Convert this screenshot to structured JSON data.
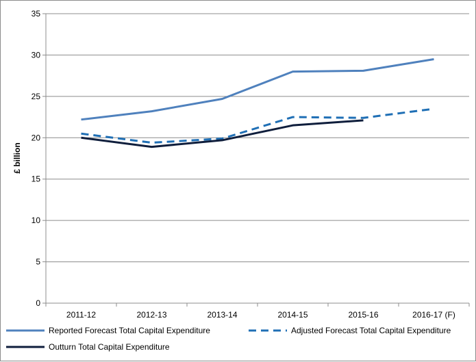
{
  "chart_data": {
    "type": "line",
    "categories": [
      "2011-12",
      "2012-13",
      "2013-14",
      "2014-15",
      "2015-16",
      "2016-17 (F)"
    ],
    "ylabel": "£ billion",
    "xlabel": "",
    "ylim": [
      0,
      35
    ],
    "ytick_step": 5,
    "yticks": [
      "0",
      "5",
      "10",
      "15",
      "20",
      "25",
      "30",
      "35"
    ],
    "grid": true,
    "legend_position": "bottom",
    "series": [
      {
        "name": "Reported Forecast Total Capital Expenditure",
        "values": [
          22.2,
          23.2,
          24.7,
          28.0,
          28.1,
          29.5
        ],
        "color": "#4f81bd",
        "style": "solid"
      },
      {
        "name": "Adjusted Forecast Total Capital Expenditure",
        "values": [
          20.5,
          19.4,
          19.9,
          22.5,
          22.4,
          23.5
        ],
        "color": "#1f6fb5",
        "style": "dashed"
      },
      {
        "name": "Outturn Total Capital Expenditure",
        "values": [
          20.0,
          18.9,
          19.7,
          21.5,
          22.1,
          null
        ],
        "color": "#0f1e3c",
        "style": "solid"
      }
    ]
  }
}
